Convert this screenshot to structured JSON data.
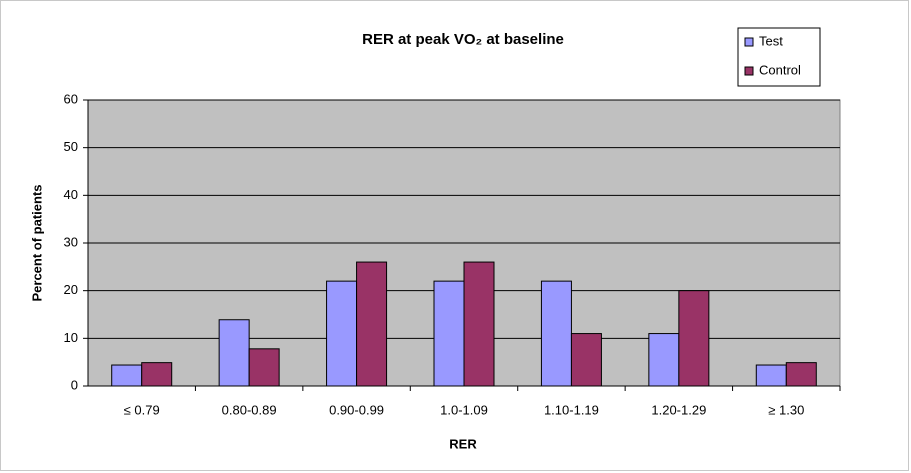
{
  "chart_data": {
    "type": "bar",
    "title": "RER at peak VO₂ at baseline",
    "x_label": "RER",
    "y_label": "Percent of patients",
    "categories": [
      "≤ 0.79",
      "0.80-0.89",
      "0.90-0.99",
      "1.0-1.09",
      "1.10-1.19",
      "1.20-1.29",
      "≥ 1.30"
    ],
    "series": [
      {
        "name": "Test",
        "color": "#9999ff",
        "values": [
          4.4,
          13.9,
          22,
          22,
          22,
          11,
          4.4
        ]
      },
      {
        "name": "Control",
        "color": "#993366",
        "values": [
          4.9,
          7.8,
          26,
          26,
          11,
          20,
          4.9
        ]
      }
    ],
    "ylim": [
      0,
      60
    ],
    "yticks": [
      0,
      10,
      20,
      30,
      40,
      50,
      60
    ],
    "grid": true,
    "legend": "top-right"
  }
}
